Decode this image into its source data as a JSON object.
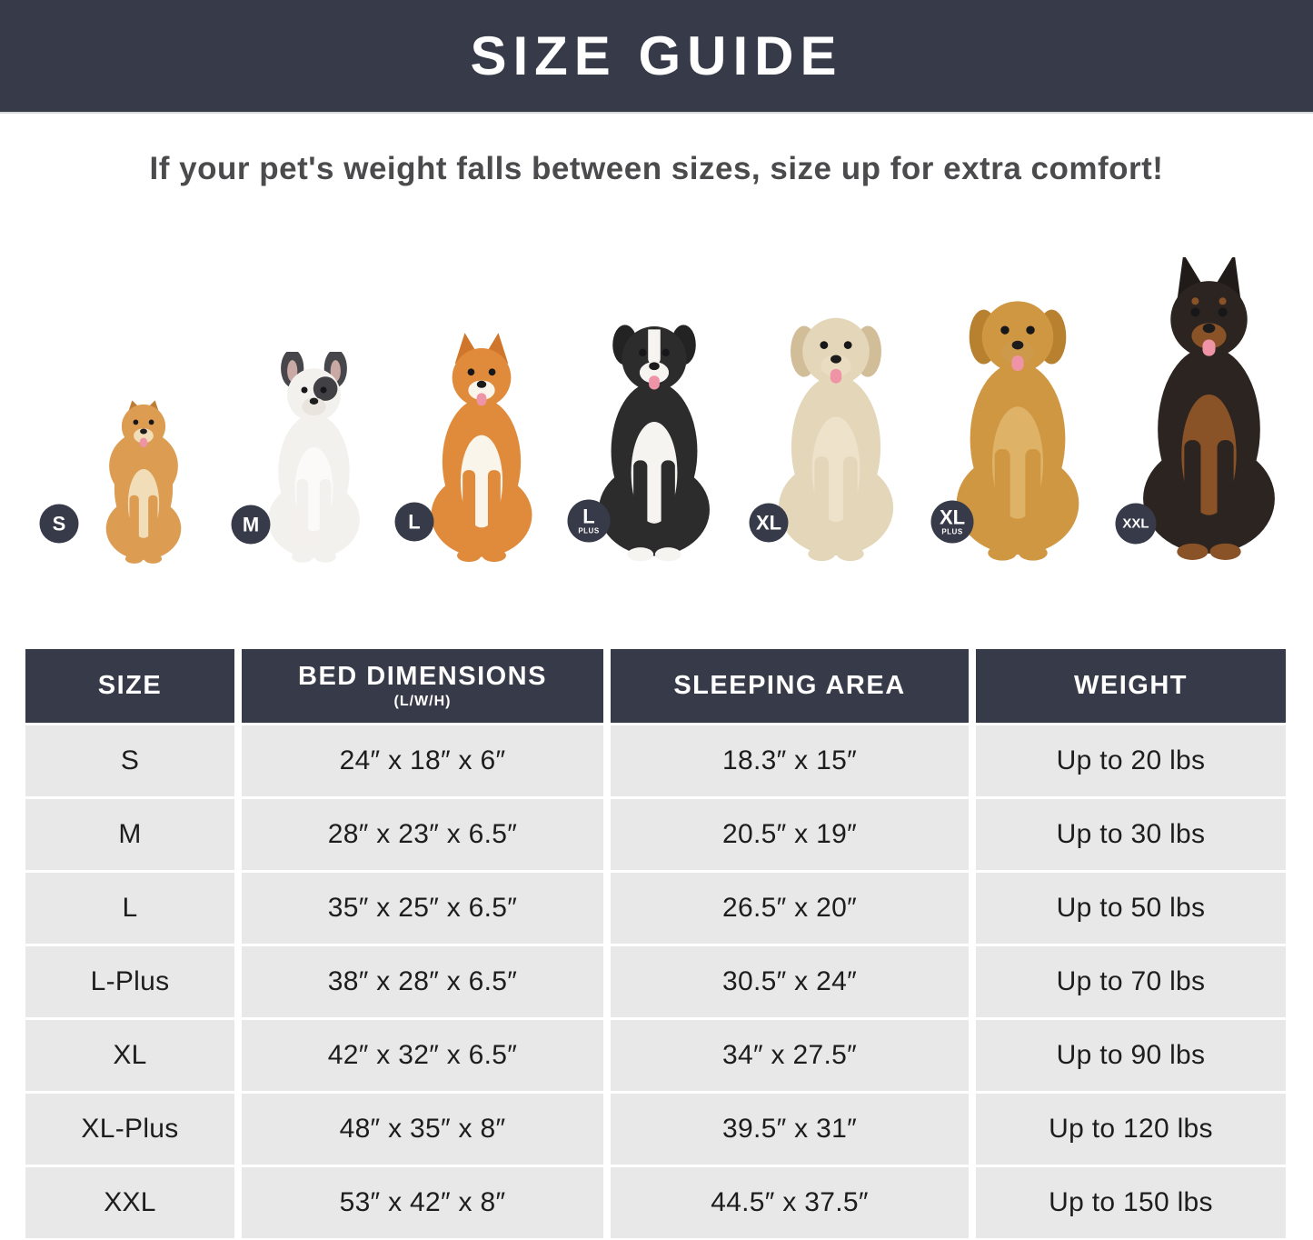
{
  "header": {
    "title": "SIZE GUIDE"
  },
  "subtitle": {
    "text": "If your pet's weight falls between sizes, size up for extra comfort!"
  },
  "colors": {
    "navy": "#373a48",
    "row_bg": "#e8e8e8",
    "cell_text": "#1d1d1d",
    "subtitle_text": "#4b4b4d",
    "tongue_pink": "#ef94a6"
  },
  "dogs": [
    {
      "breed": "pomeranian",
      "badge": {
        "label": "S",
        "sub": ""
      },
      "style": {
        "ears": "pointy-small",
        "fluffy": true,
        "tongue": true,
        "colors": {
          "body": "#dc9c52",
          "chest": "#f2ddb9",
          "ear": "#bd7c33",
          "muzzle": "#f2ddb9"
        }
      }
    },
    {
      "breed": "french-bulldog",
      "badge": {
        "label": "M",
        "sub": ""
      },
      "style": {
        "ears": "bat",
        "patch": true,
        "tongue": false,
        "colors": {
          "body": "#f3f1ee",
          "chest": "#fbfaf8",
          "ear": "#47474b",
          "muzzle": "#e9e4dd",
          "patch": "#404045",
          "ear_inner": "#c9a9a4"
        }
      }
    },
    {
      "breed": "shiba-inu",
      "badge": {
        "label": "L",
        "sub": ""
      },
      "style": {
        "ears": "pointy",
        "tongue": true,
        "colors": {
          "body": "#e08a3c",
          "chest": "#faf5ea",
          "ear": "#d0762c",
          "muzzle": "#faf5ea"
        }
      }
    },
    {
      "breed": "border-collie",
      "badge": {
        "label": "L",
        "sub": "PLUS"
      },
      "style": {
        "ears": "semi",
        "blaze": true,
        "tongue": true,
        "white_paws": true,
        "colors": {
          "body": "#2d2c2c",
          "chest": "#f6f4f1",
          "ear": "#232323",
          "muzzle": "#f6f4f1"
        }
      }
    },
    {
      "breed": "labrador",
      "badge": {
        "label": "XL",
        "sub": ""
      },
      "style": {
        "ears": "floppy",
        "tongue": true,
        "colors": {
          "body": "#e4d6b9",
          "chest": "#eee2ca",
          "ear": "#d2bd99",
          "muzzle": "#e9dcc0"
        }
      }
    },
    {
      "breed": "golden-retriever",
      "badge": {
        "label": "XL",
        "sub": "PLUS"
      },
      "style": {
        "ears": "floppy",
        "tongue": true,
        "colors": {
          "body": "#d09743",
          "chest": "#deb267",
          "ear": "#b8812f",
          "muzzle": "#cd9a4b"
        }
      }
    },
    {
      "breed": "doberman",
      "badge": {
        "label": "XXL",
        "sub": ""
      },
      "style": {
        "ears": "tall",
        "brows": true,
        "tongue": true,
        "tan_paws": true,
        "colors": {
          "body": "#2b2420",
          "chest": "#8a5227",
          "ear": "#201b18",
          "muzzle": "#8a5227"
        }
      }
    }
  ],
  "table": {
    "columns": [
      {
        "label": "SIZE"
      },
      {
        "label": "BED DIMENSIONS",
        "sub": "(L/W/H)"
      },
      {
        "label": "SLEEPING AREA"
      },
      {
        "label": "WEIGHT"
      }
    ],
    "rows": [
      [
        "S",
        "24″ x 18″ x 6″",
        "18.3″ x 15″",
        "Up to 20 lbs"
      ],
      [
        "M",
        "28″ x 23″ x 6.5″",
        "20.5″ x 19″",
        "Up to 30 lbs"
      ],
      [
        "L",
        "35″ x 25″ x 6.5″",
        "26.5″ x 20″",
        "Up to 50 lbs"
      ],
      [
        "L-Plus",
        "38″ x 28″ x 6.5″",
        "30.5″ x 24″",
        "Up to 70 lbs"
      ],
      [
        "XL",
        "42″ x 32″ x 6.5″",
        "34″ x 27.5″",
        "Up to 90 lbs"
      ],
      [
        "XL-Plus",
        "48″ x 35″ x 8″",
        "39.5″ x 31″",
        "Up to 120 lbs"
      ],
      [
        "XXL",
        "53″ x 42″ x 8″",
        "44.5″ x 37.5″",
        "Up to 150 lbs"
      ]
    ]
  }
}
